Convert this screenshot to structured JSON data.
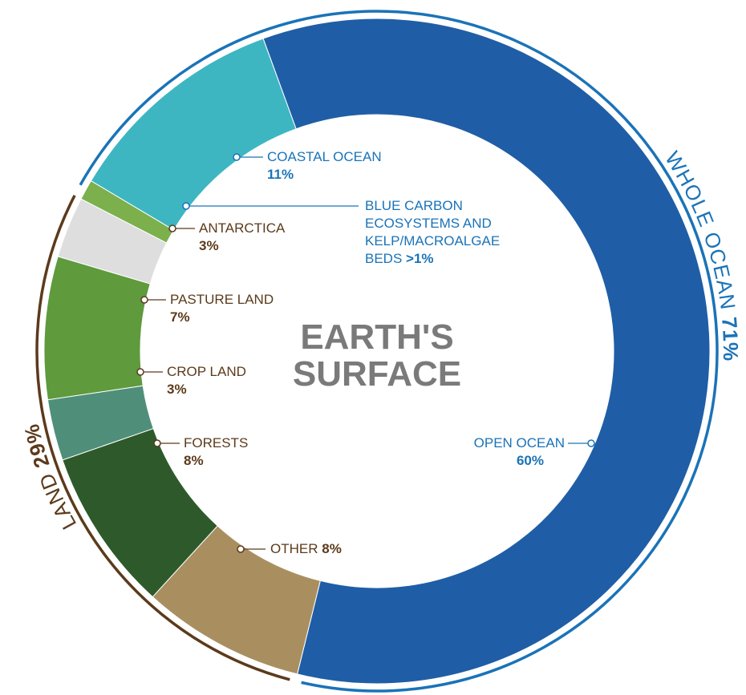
{
  "chart_data": {
    "type": "donut",
    "title": "EARTH'S SURFACE",
    "categories": [
      "OPEN OCEAN",
      "OTHER",
      "FORESTS",
      "CROP LAND",
      "PASTURE LAND",
      "ANTARCTICA",
      "BLUE CARBON ECOSYSTEMS AND KELP/MACROALGAE BEDS",
      "COASTAL OCEAN"
    ],
    "values": [
      60,
      8,
      8,
      3,
      7,
      3,
      1,
      11
    ],
    "value_labels": [
      "60%",
      "8%",
      "8%",
      "3%",
      "7%",
      "3%",
      ">1%",
      "11%"
    ],
    "colors": [
      "#1f5ea6",
      "#a98f60",
      "#2e5a2b",
      "#4f8f7a",
      "#5f9a3c",
      "#dedede",
      "#7bb04d",
      "#3db6c2"
    ],
    "groups": [
      {
        "name": "WHOLE OCEAN",
        "value": 71,
        "value_label": "71%",
        "color": "#1a73b8"
      },
      {
        "name": "LAND",
        "value": 29,
        "value_label": "29%",
        "color": "#5c3a1b"
      }
    ]
  }
}
